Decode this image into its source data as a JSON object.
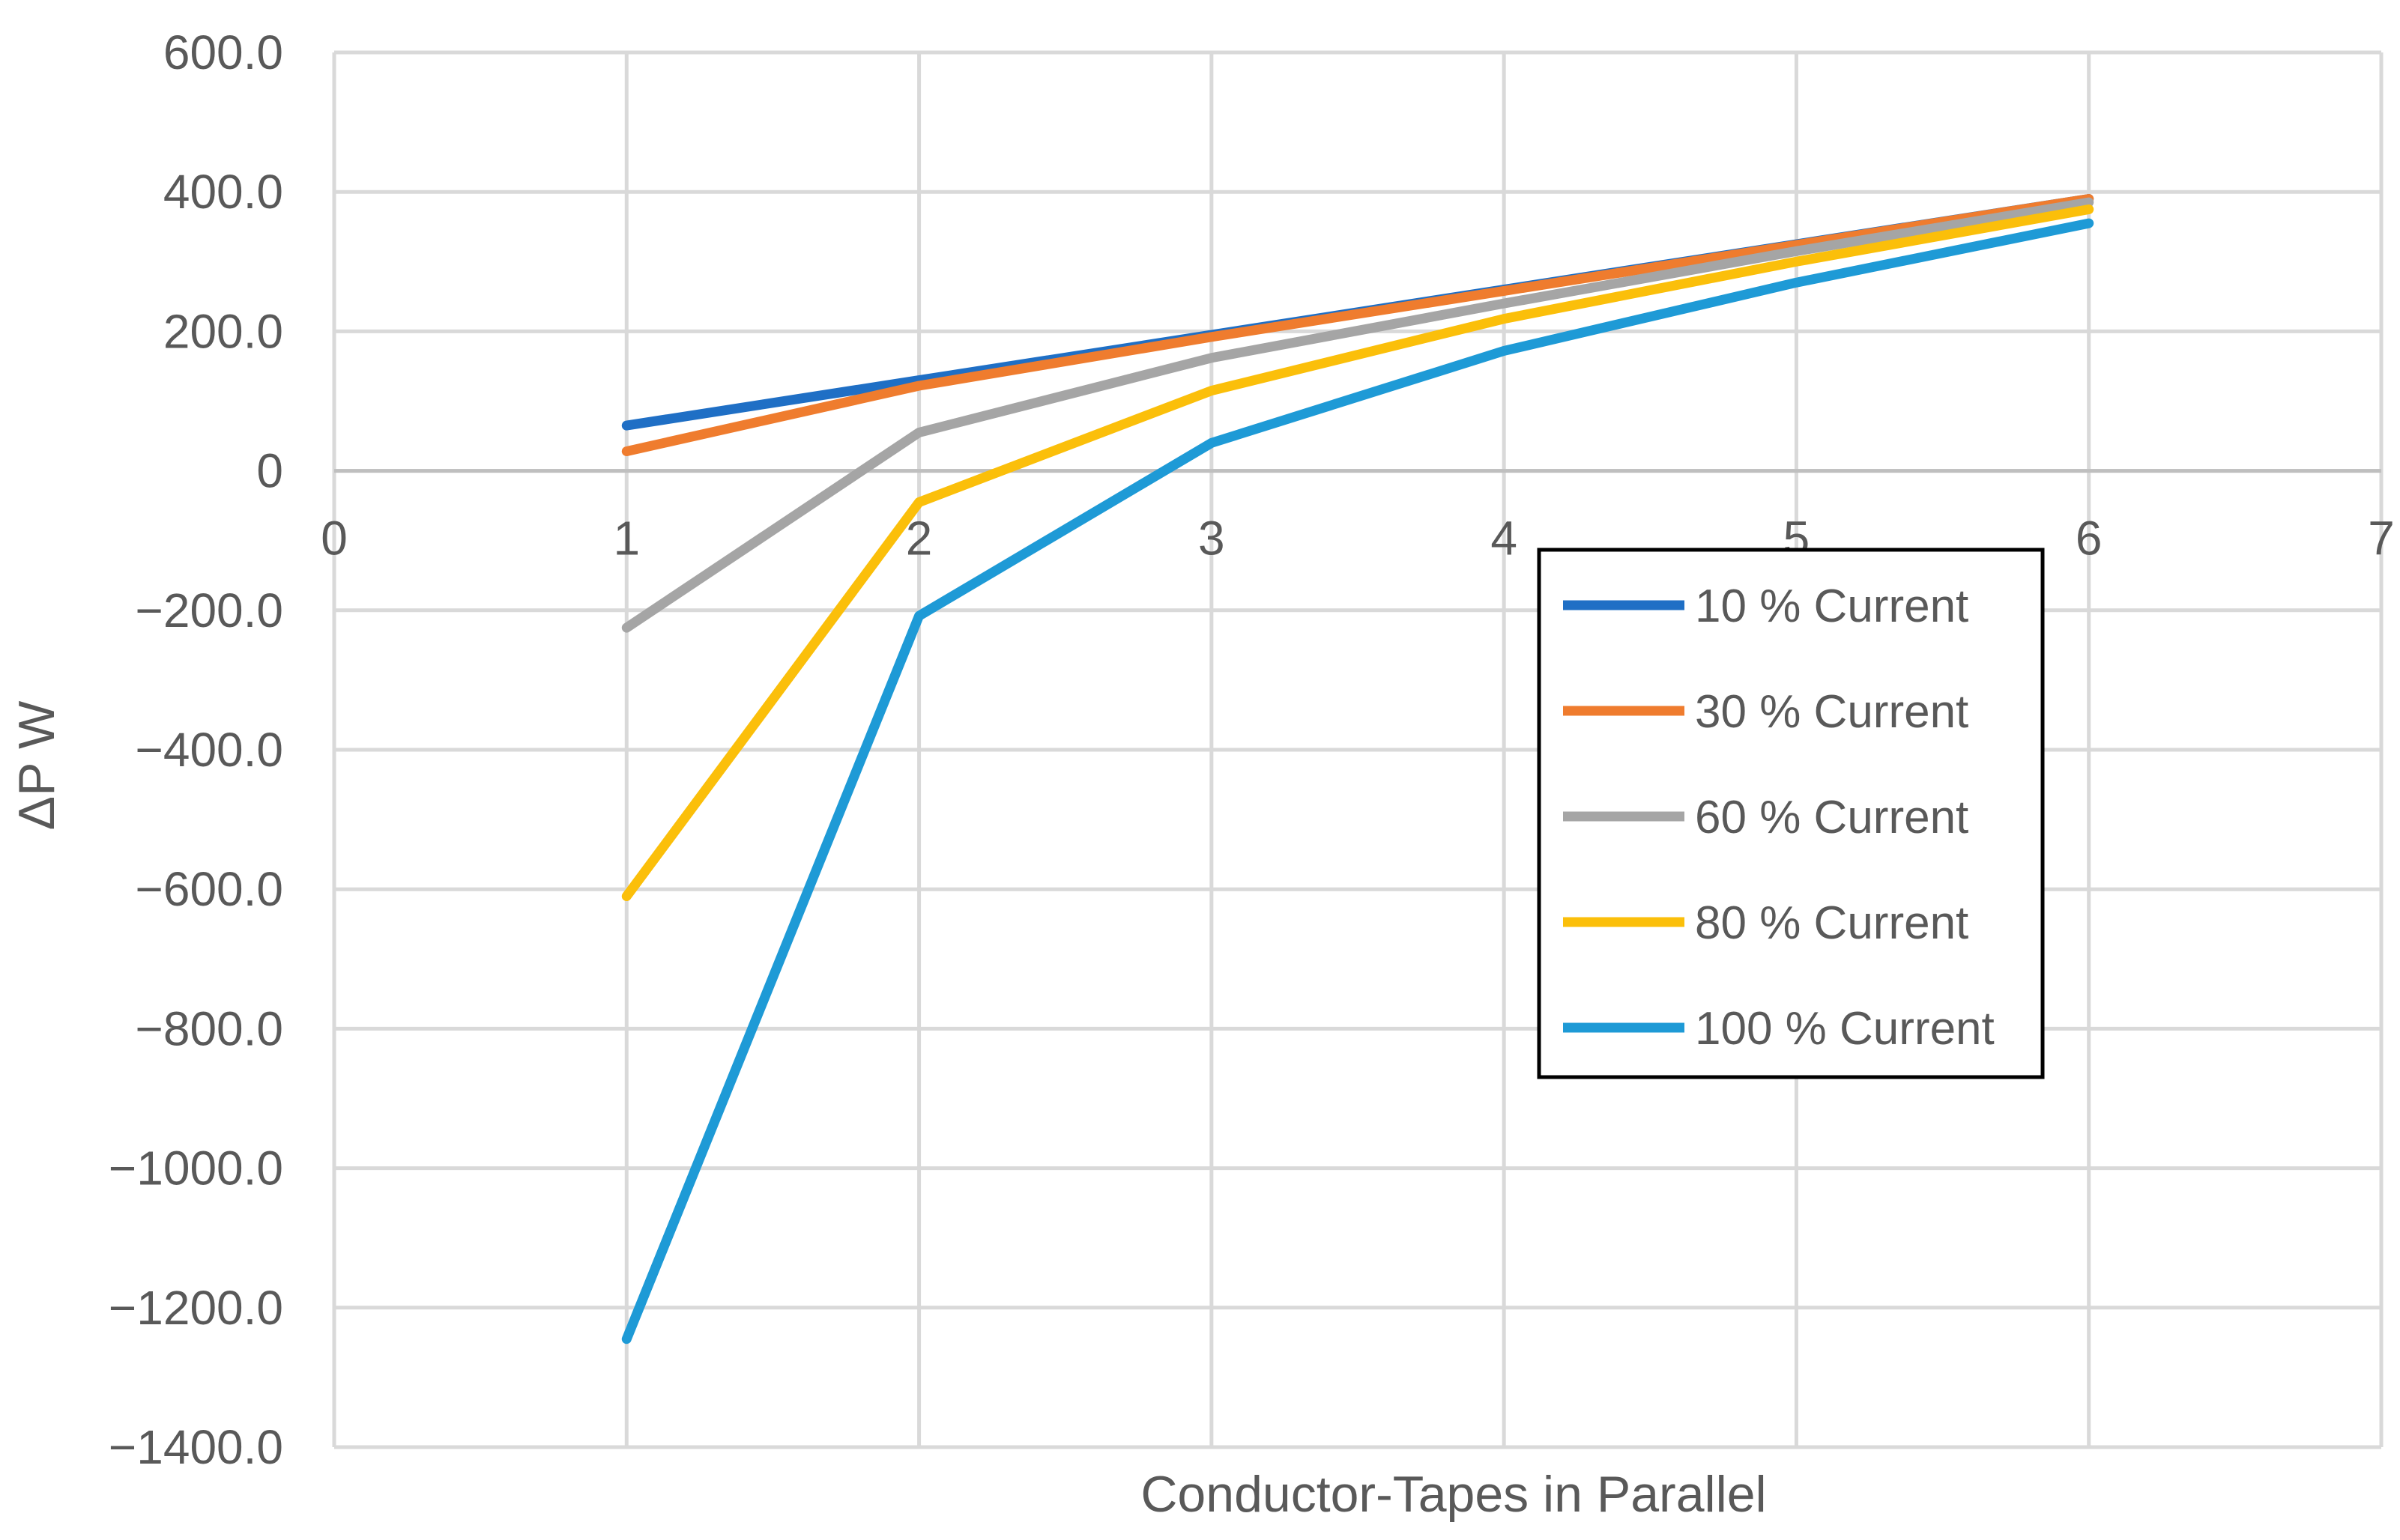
{
  "chart_data": {
    "type": "line",
    "xlabel": "Conductor-Tapes in Parallel",
    "ylabel": "ΔP  W",
    "xlim": [
      0,
      7
    ],
    "ylim": [
      -1400,
      600
    ],
    "x_ticks": [
      "0",
      "1",
      "2",
      "3",
      "4",
      "5",
      "6",
      "7"
    ],
    "y_ticks": [
      {
        "value": 600,
        "label": "600.0"
      },
      {
        "value": 400,
        "label": "400.0"
      },
      {
        "value": 200,
        "label": "200.0"
      },
      {
        "value": 0,
        "label": "0"
      },
      {
        "value": -200,
        "label": "−200.0"
      },
      {
        "value": -400,
        "label": "−400.0"
      },
      {
        "value": -600,
        "label": "−600.0"
      },
      {
        "value": -800,
        "label": "−800.0"
      },
      {
        "value": -1000,
        "label": "−1000.0"
      },
      {
        "value": -1200,
        "label": "−1200.0"
      },
      {
        "value": -1400,
        "label": "−1400.0"
      }
    ],
    "grid": true,
    "legend_position": "lower-right",
    "x": [
      1,
      2,
      3,
      4,
      5,
      6
    ],
    "series": [
      {
        "name": "10 % Current",
        "color": "#1f6fc5",
        "values": [
          65,
          130,
          195,
          260,
          325,
          390
        ]
      },
      {
        "name": "30 % Current",
        "color": "#ef7c2e",
        "values": [
          28,
          122,
          192,
          258,
          324,
          390
        ]
      },
      {
        "name": "60 % Current",
        "color": "#a5a5a5",
        "values": [
          -225,
          55,
          162,
          240,
          315,
          385
        ]
      },
      {
        "name": "80 % Current",
        "color": "#fbbf0a",
        "values": [
          -610,
          -45,
          115,
          218,
          300,
          375
        ]
      },
      {
        "name": "100 % Current",
        "color": "#1e9ad6",
        "values": [
          -1245,
          -208,
          40,
          172,
          270,
          355
        ]
      }
    ]
  }
}
